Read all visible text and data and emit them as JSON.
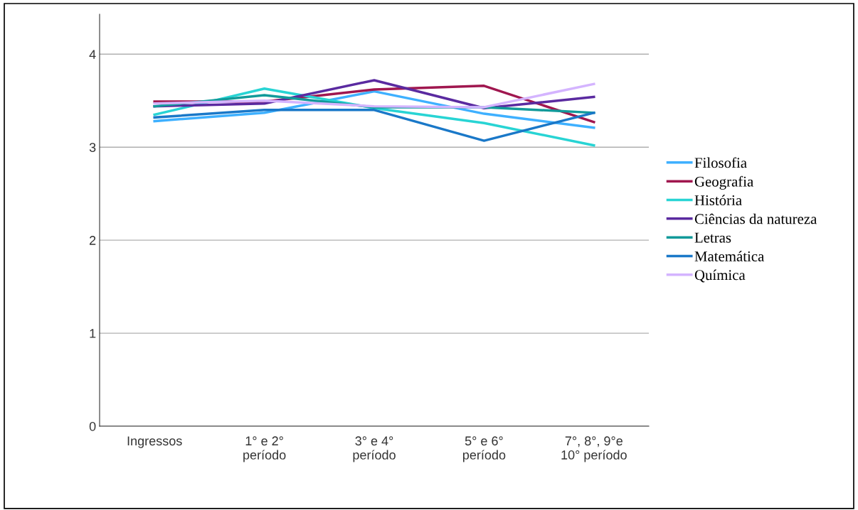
{
  "chart_data": {
    "type": "line",
    "categories": [
      "Ingressos",
      "1° e 2°\nperíodo",
      "3° e 4°\nperíodo",
      "5° e 6°\nperíodo",
      "7°, 8°, 9°e\n10° período"
    ],
    "series": [
      {
        "name": "Filosofia",
        "color": "#3eb0ff",
        "values": [
          3.28,
          3.37,
          3.6,
          3.36,
          3.21
        ]
      },
      {
        "name": "Geografia",
        "color": "#a0174f",
        "values": [
          3.49,
          3.49,
          3.62,
          3.66,
          3.27
        ]
      },
      {
        "name": "História",
        "color": "#28d4d4",
        "values": [
          3.35,
          3.63,
          3.42,
          3.26,
          3.02
        ]
      },
      {
        "name": "Ciências da natureza",
        "color": "#5a2aa0",
        "values": [
          3.44,
          3.47,
          3.72,
          3.42,
          3.54
        ]
      },
      {
        "name": "Letras",
        "color": "#129a9a",
        "values": [
          3.44,
          3.56,
          3.43,
          3.43,
          3.37
        ]
      },
      {
        "name": "Matemática",
        "color": "#1a78c8",
        "values": [
          3.32,
          3.4,
          3.4,
          3.07,
          3.37
        ]
      },
      {
        "name": "Química",
        "color": "#d4b4ff",
        "values": [
          3.47,
          3.5,
          3.44,
          3.43,
          3.68
        ]
      }
    ],
    "ylim": [
      0,
      4.43
    ],
    "yticks": [
      0,
      1,
      2,
      3,
      4
    ],
    "grid": "y",
    "legend": "right",
    "marker": "none",
    "line_style": "solid"
  }
}
